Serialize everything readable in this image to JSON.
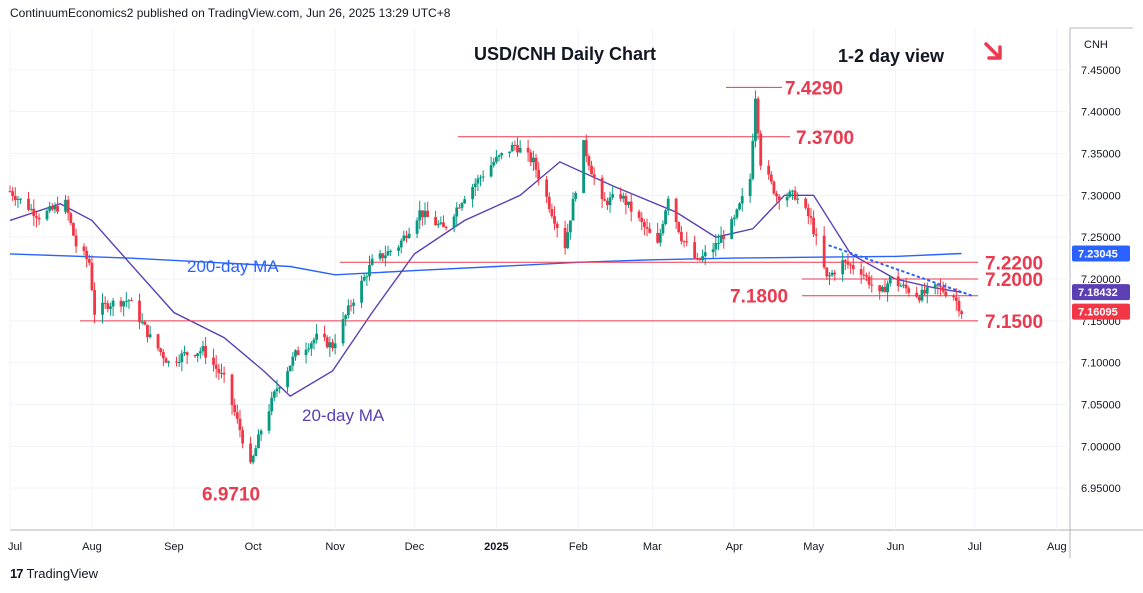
{
  "header": {
    "publisher": "ContinuumEconomics2 published on TradingView.com, Jun 26, 2025 13:29 UTC+8"
  },
  "footer": {
    "logo": "17",
    "brand": "TradingView"
  },
  "colors": {
    "up": "#089981",
    "down": "#f23645",
    "level": "#ea3a4f",
    "ma200": "#2962ff",
    "ma20": "#5b3fb5",
    "grid": "#f0f3fa",
    "axis": "#b2b5be"
  },
  "chart_data": {
    "type": "candlestick",
    "title": "USD/CNH Daily Chart",
    "view_label": "1-2 day view",
    "view_arrow": "down-right-arrow",
    "symbol": "CNH",
    "ylim": [
      6.9,
      7.5
    ],
    "y_ticks": [
      "7.45000",
      "7.40000",
      "7.35000",
      "7.30000",
      "7.25000",
      "7.20000",
      "7.15000",
      "7.10000",
      "7.05000",
      "7.00000",
      "6.95000"
    ],
    "x_ticks": [
      "Jul",
      "Aug",
      "Sep",
      "Oct",
      "Nov",
      "Dec",
      "2025",
      "Feb",
      "Mar",
      "Apr",
      "May",
      "Jun",
      "Jul",
      "Aug"
    ],
    "levels": [
      {
        "label": "7.4290",
        "value": 7.429
      },
      {
        "label": "7.3700",
        "value": 7.37
      },
      {
        "label": "7.2200",
        "value": 7.22
      },
      {
        "label": "7.2000",
        "value": 7.2
      },
      {
        "label": "7.1800",
        "value": 7.18
      },
      {
        "label": "7.1500",
        "value": 7.15
      },
      {
        "label": "6.9710",
        "value": 6.971
      }
    ],
    "ma_labels": {
      "ma200": "200-day MA",
      "ma20": "20-day MA"
    },
    "price_badges": [
      {
        "label": "7.23045",
        "value": 7.23045,
        "color": "#2962ff"
      },
      {
        "label": "7.18432",
        "value": 7.18432,
        "color": "#5b3fb5"
      },
      {
        "label": "7.16095",
        "value": 7.16095,
        "color": "#f23645"
      }
    ],
    "price_path": [
      [
        "2024-07-01",
        7.305
      ],
      [
        "2024-07-12",
        7.275
      ],
      [
        "2024-07-22",
        7.29
      ],
      [
        "2024-07-26",
        7.24
      ],
      [
        "2024-07-31",
        7.22
      ],
      [
        "2024-08-02",
        7.16
      ],
      [
        "2024-08-07",
        7.17
      ],
      [
        "2024-08-15",
        7.175
      ],
      [
        "2024-08-23",
        7.13
      ],
      [
        "2024-08-30",
        7.1
      ],
      [
        "2024-09-05",
        7.11
      ],
      [
        "2024-09-12",
        7.115
      ],
      [
        "2024-09-20",
        7.08
      ],
      [
        "2024-09-26",
        7.02
      ],
      [
        "2024-09-30",
        6.975
      ],
      [
        "2024-10-04",
        7.02
      ],
      [
        "2024-10-10",
        7.07
      ],
      [
        "2024-10-17",
        7.11
      ],
      [
        "2024-10-25",
        7.13
      ],
      [
        "2024-10-31",
        7.12
      ],
      [
        "2024-11-07",
        7.17
      ],
      [
        "2024-11-15",
        7.22
      ],
      [
        "2024-11-25",
        7.24
      ],
      [
        "2024-12-03",
        7.28
      ],
      [
        "2024-12-12",
        7.26
      ],
      [
        "2024-12-20",
        7.3
      ],
      [
        "2024-12-31",
        7.34
      ],
      [
        "2025-01-08",
        7.36
      ],
      [
        "2025-01-15",
        7.34
      ],
      [
        "2025-01-22",
        7.28
      ],
      [
        "2025-01-27",
        7.24
      ],
      [
        "2025-02-03",
        7.36
      ],
      [
        "2025-02-10",
        7.29
      ],
      [
        "2025-02-17",
        7.3
      ],
      [
        "2025-02-24",
        7.27
      ],
      [
        "2025-03-03",
        7.24
      ],
      [
        "2025-03-07",
        7.3
      ],
      [
        "2025-03-12",
        7.25
      ],
      [
        "2025-03-18",
        7.22
      ],
      [
        "2025-03-25",
        7.24
      ],
      [
        "2025-04-01",
        7.27
      ],
      [
        "2025-04-07",
        7.32
      ],
      [
        "2025-04-09",
        7.42
      ],
      [
        "2025-04-11",
        7.34
      ],
      [
        "2025-04-17",
        7.3
      ],
      [
        "2025-04-24",
        7.3
      ],
      [
        "2025-04-30",
        7.27
      ],
      [
        "2025-05-06",
        7.2
      ],
      [
        "2025-05-12",
        7.22
      ],
      [
        "2025-05-19",
        7.21
      ],
      [
        "2025-05-26",
        7.18
      ],
      [
        "2025-05-30",
        7.2
      ],
      [
        "2025-06-04",
        7.19
      ],
      [
        "2025-06-10",
        7.18
      ],
      [
        "2025-06-17",
        7.19
      ],
      [
        "2025-06-23",
        7.18
      ],
      [
        "2025-06-26",
        7.161
      ]
    ],
    "ma20_path": [
      [
        "2024-07-01",
        7.27
      ],
      [
        "2024-07-20",
        7.29
      ],
      [
        "2024-08-01",
        7.27
      ],
      [
        "2024-08-15",
        7.22
      ],
      [
        "2024-09-01",
        7.16
      ],
      [
        "2024-09-20",
        7.13
      ],
      [
        "2024-10-05",
        7.09
      ],
      [
        "2024-10-15",
        7.06
      ],
      [
        "2024-10-31",
        7.09
      ],
      [
        "2024-11-15",
        7.16
      ],
      [
        "2024-12-01",
        7.23
      ],
      [
        "2024-12-20",
        7.27
      ],
      [
        "2025-01-10",
        7.3
      ],
      [
        "2025-01-25",
        7.34
      ],
      [
        "2025-02-15",
        7.31
      ],
      [
        "2025-03-10",
        7.28
      ],
      [
        "2025-03-25",
        7.25
      ],
      [
        "2025-04-08",
        7.26
      ],
      [
        "2025-04-20",
        7.3
      ],
      [
        "2025-05-01",
        7.3
      ],
      [
        "2025-05-15",
        7.23
      ],
      [
        "2025-06-01",
        7.2
      ],
      [
        "2025-06-15",
        7.19
      ],
      [
        "2025-06-26",
        7.184
      ]
    ],
    "ma200_path": [
      [
        "2024-07-01",
        7.23
      ],
      [
        "2024-08-15",
        7.225
      ],
      [
        "2024-09-15",
        7.22
      ],
      [
        "2024-10-15",
        7.215
      ],
      [
        "2024-11-01",
        7.205
      ],
      [
        "2024-12-01",
        7.21
      ],
      [
        "2025-01-01",
        7.215
      ],
      [
        "2025-02-01",
        7.22
      ],
      [
        "2025-03-01",
        7.223
      ],
      [
        "2025-04-01",
        7.225
      ],
      [
        "2025-05-01",
        7.226
      ],
      [
        "2025-06-01",
        7.227
      ],
      [
        "2025-06-26",
        7.2305
      ]
    ],
    "trendline": [
      [
        "2025-05-07",
        7.24
      ],
      [
        "2025-06-30",
        7.18
      ]
    ]
  }
}
